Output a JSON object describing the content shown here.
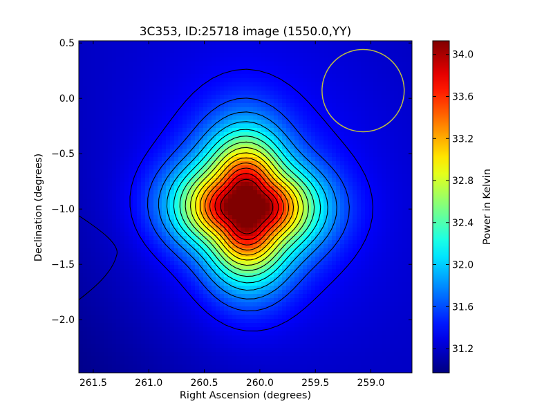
{
  "chart_data": {
    "type": "heatmap",
    "title": "3C353, ID:25718 image (1550.0,YY)",
    "xlabel": "Right Ascension (degrees)",
    "ylabel": "Declination (degrees)",
    "colorbar_label": "Power in Kelvin",
    "xlim": [
      261.63,
      258.63
    ],
    "ylim": [
      -2.48,
      0.52
    ],
    "x_ticks": [
      261.5,
      261.0,
      260.5,
      260.0,
      259.5,
      259.0
    ],
    "x_tick_labels": [
      "261.5",
      "261.0",
      "260.5",
      "260.0",
      "259.5",
      "259.0"
    ],
    "y_ticks": [
      0.5,
      0.0,
      -0.5,
      -1.0,
      -1.5,
      -2.0
    ],
    "y_tick_labels": [
      "0.5",
      "0.0",
      "−0.5",
      "−1.0",
      "−1.5",
      "−2.0"
    ],
    "colorbar_range": [
      30.97,
      34.13
    ],
    "colorbar_ticks": [
      31.2,
      31.6,
      32.0,
      32.4,
      32.8,
      33.2,
      33.6,
      34.0
    ],
    "colorbar_tick_labels": [
      "31.2",
      "31.6",
      "32.0",
      "32.4",
      "32.8",
      "33.2",
      "33.6",
      "34.0"
    ],
    "colormap": "jet",
    "grid": false,
    "source_peak": {
      "ra": 260.12,
      "dec": -0.98,
      "value": 34.1
    },
    "background_level": 31.1,
    "beam": {
      "ra": 259.07,
      "dec": 0.07,
      "radius_deg": 0.37,
      "color": "#bfbf3f"
    },
    "contour_color": "#000000"
  }
}
